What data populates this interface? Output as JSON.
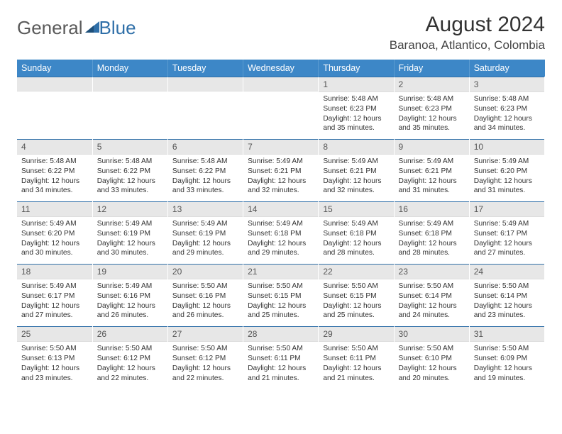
{
  "brand": {
    "part1": "General",
    "part2": "Blue"
  },
  "title": "August 2024",
  "location": "Baranoa, Atlantico, Colombia",
  "colors": {
    "header_bg": "#3d87c7",
    "header_text": "#ffffff",
    "daynum_bg": "#e7e7e7",
    "row_border": "#2f6fa8",
    "brand_gray": "#5a5a5a",
    "brand_blue": "#2f6fa8"
  },
  "weekdays": [
    "Sunday",
    "Monday",
    "Tuesday",
    "Wednesday",
    "Thursday",
    "Friday",
    "Saturday"
  ],
  "weeks": [
    [
      null,
      null,
      null,
      null,
      {
        "n": "1",
        "sr": "5:48 AM",
        "ss": "6:23 PM",
        "dl": "12 hours and 35 minutes."
      },
      {
        "n": "2",
        "sr": "5:48 AM",
        "ss": "6:23 PM",
        "dl": "12 hours and 35 minutes."
      },
      {
        "n": "3",
        "sr": "5:48 AM",
        "ss": "6:23 PM",
        "dl": "12 hours and 34 minutes."
      }
    ],
    [
      {
        "n": "4",
        "sr": "5:48 AM",
        "ss": "6:22 PM",
        "dl": "12 hours and 34 minutes."
      },
      {
        "n": "5",
        "sr": "5:48 AM",
        "ss": "6:22 PM",
        "dl": "12 hours and 33 minutes."
      },
      {
        "n": "6",
        "sr": "5:48 AM",
        "ss": "6:22 PM",
        "dl": "12 hours and 33 minutes."
      },
      {
        "n": "7",
        "sr": "5:49 AM",
        "ss": "6:21 PM",
        "dl": "12 hours and 32 minutes."
      },
      {
        "n": "8",
        "sr": "5:49 AM",
        "ss": "6:21 PM",
        "dl": "12 hours and 32 minutes."
      },
      {
        "n": "9",
        "sr": "5:49 AM",
        "ss": "6:21 PM",
        "dl": "12 hours and 31 minutes."
      },
      {
        "n": "10",
        "sr": "5:49 AM",
        "ss": "6:20 PM",
        "dl": "12 hours and 31 minutes."
      }
    ],
    [
      {
        "n": "11",
        "sr": "5:49 AM",
        "ss": "6:20 PM",
        "dl": "12 hours and 30 minutes."
      },
      {
        "n": "12",
        "sr": "5:49 AM",
        "ss": "6:19 PM",
        "dl": "12 hours and 30 minutes."
      },
      {
        "n": "13",
        "sr": "5:49 AM",
        "ss": "6:19 PM",
        "dl": "12 hours and 29 minutes."
      },
      {
        "n": "14",
        "sr": "5:49 AM",
        "ss": "6:18 PM",
        "dl": "12 hours and 29 minutes."
      },
      {
        "n": "15",
        "sr": "5:49 AM",
        "ss": "6:18 PM",
        "dl": "12 hours and 28 minutes."
      },
      {
        "n": "16",
        "sr": "5:49 AM",
        "ss": "6:18 PM",
        "dl": "12 hours and 28 minutes."
      },
      {
        "n": "17",
        "sr": "5:49 AM",
        "ss": "6:17 PM",
        "dl": "12 hours and 27 minutes."
      }
    ],
    [
      {
        "n": "18",
        "sr": "5:49 AM",
        "ss": "6:17 PM",
        "dl": "12 hours and 27 minutes."
      },
      {
        "n": "19",
        "sr": "5:49 AM",
        "ss": "6:16 PM",
        "dl": "12 hours and 26 minutes."
      },
      {
        "n": "20",
        "sr": "5:50 AM",
        "ss": "6:16 PM",
        "dl": "12 hours and 26 minutes."
      },
      {
        "n": "21",
        "sr": "5:50 AM",
        "ss": "6:15 PM",
        "dl": "12 hours and 25 minutes."
      },
      {
        "n": "22",
        "sr": "5:50 AM",
        "ss": "6:15 PM",
        "dl": "12 hours and 25 minutes."
      },
      {
        "n": "23",
        "sr": "5:50 AM",
        "ss": "6:14 PM",
        "dl": "12 hours and 24 minutes."
      },
      {
        "n": "24",
        "sr": "5:50 AM",
        "ss": "6:14 PM",
        "dl": "12 hours and 23 minutes."
      }
    ],
    [
      {
        "n": "25",
        "sr": "5:50 AM",
        "ss": "6:13 PM",
        "dl": "12 hours and 23 minutes."
      },
      {
        "n": "26",
        "sr": "5:50 AM",
        "ss": "6:12 PM",
        "dl": "12 hours and 22 minutes."
      },
      {
        "n": "27",
        "sr": "5:50 AM",
        "ss": "6:12 PM",
        "dl": "12 hours and 22 minutes."
      },
      {
        "n": "28",
        "sr": "5:50 AM",
        "ss": "6:11 PM",
        "dl": "12 hours and 21 minutes."
      },
      {
        "n": "29",
        "sr": "5:50 AM",
        "ss": "6:11 PM",
        "dl": "12 hours and 21 minutes."
      },
      {
        "n": "30",
        "sr": "5:50 AM",
        "ss": "6:10 PM",
        "dl": "12 hours and 20 minutes."
      },
      {
        "n": "31",
        "sr": "5:50 AM",
        "ss": "6:09 PM",
        "dl": "12 hours and 19 minutes."
      }
    ]
  ],
  "labels": {
    "sunrise": "Sunrise:",
    "sunset": "Sunset:",
    "daylight": "Daylight:"
  }
}
